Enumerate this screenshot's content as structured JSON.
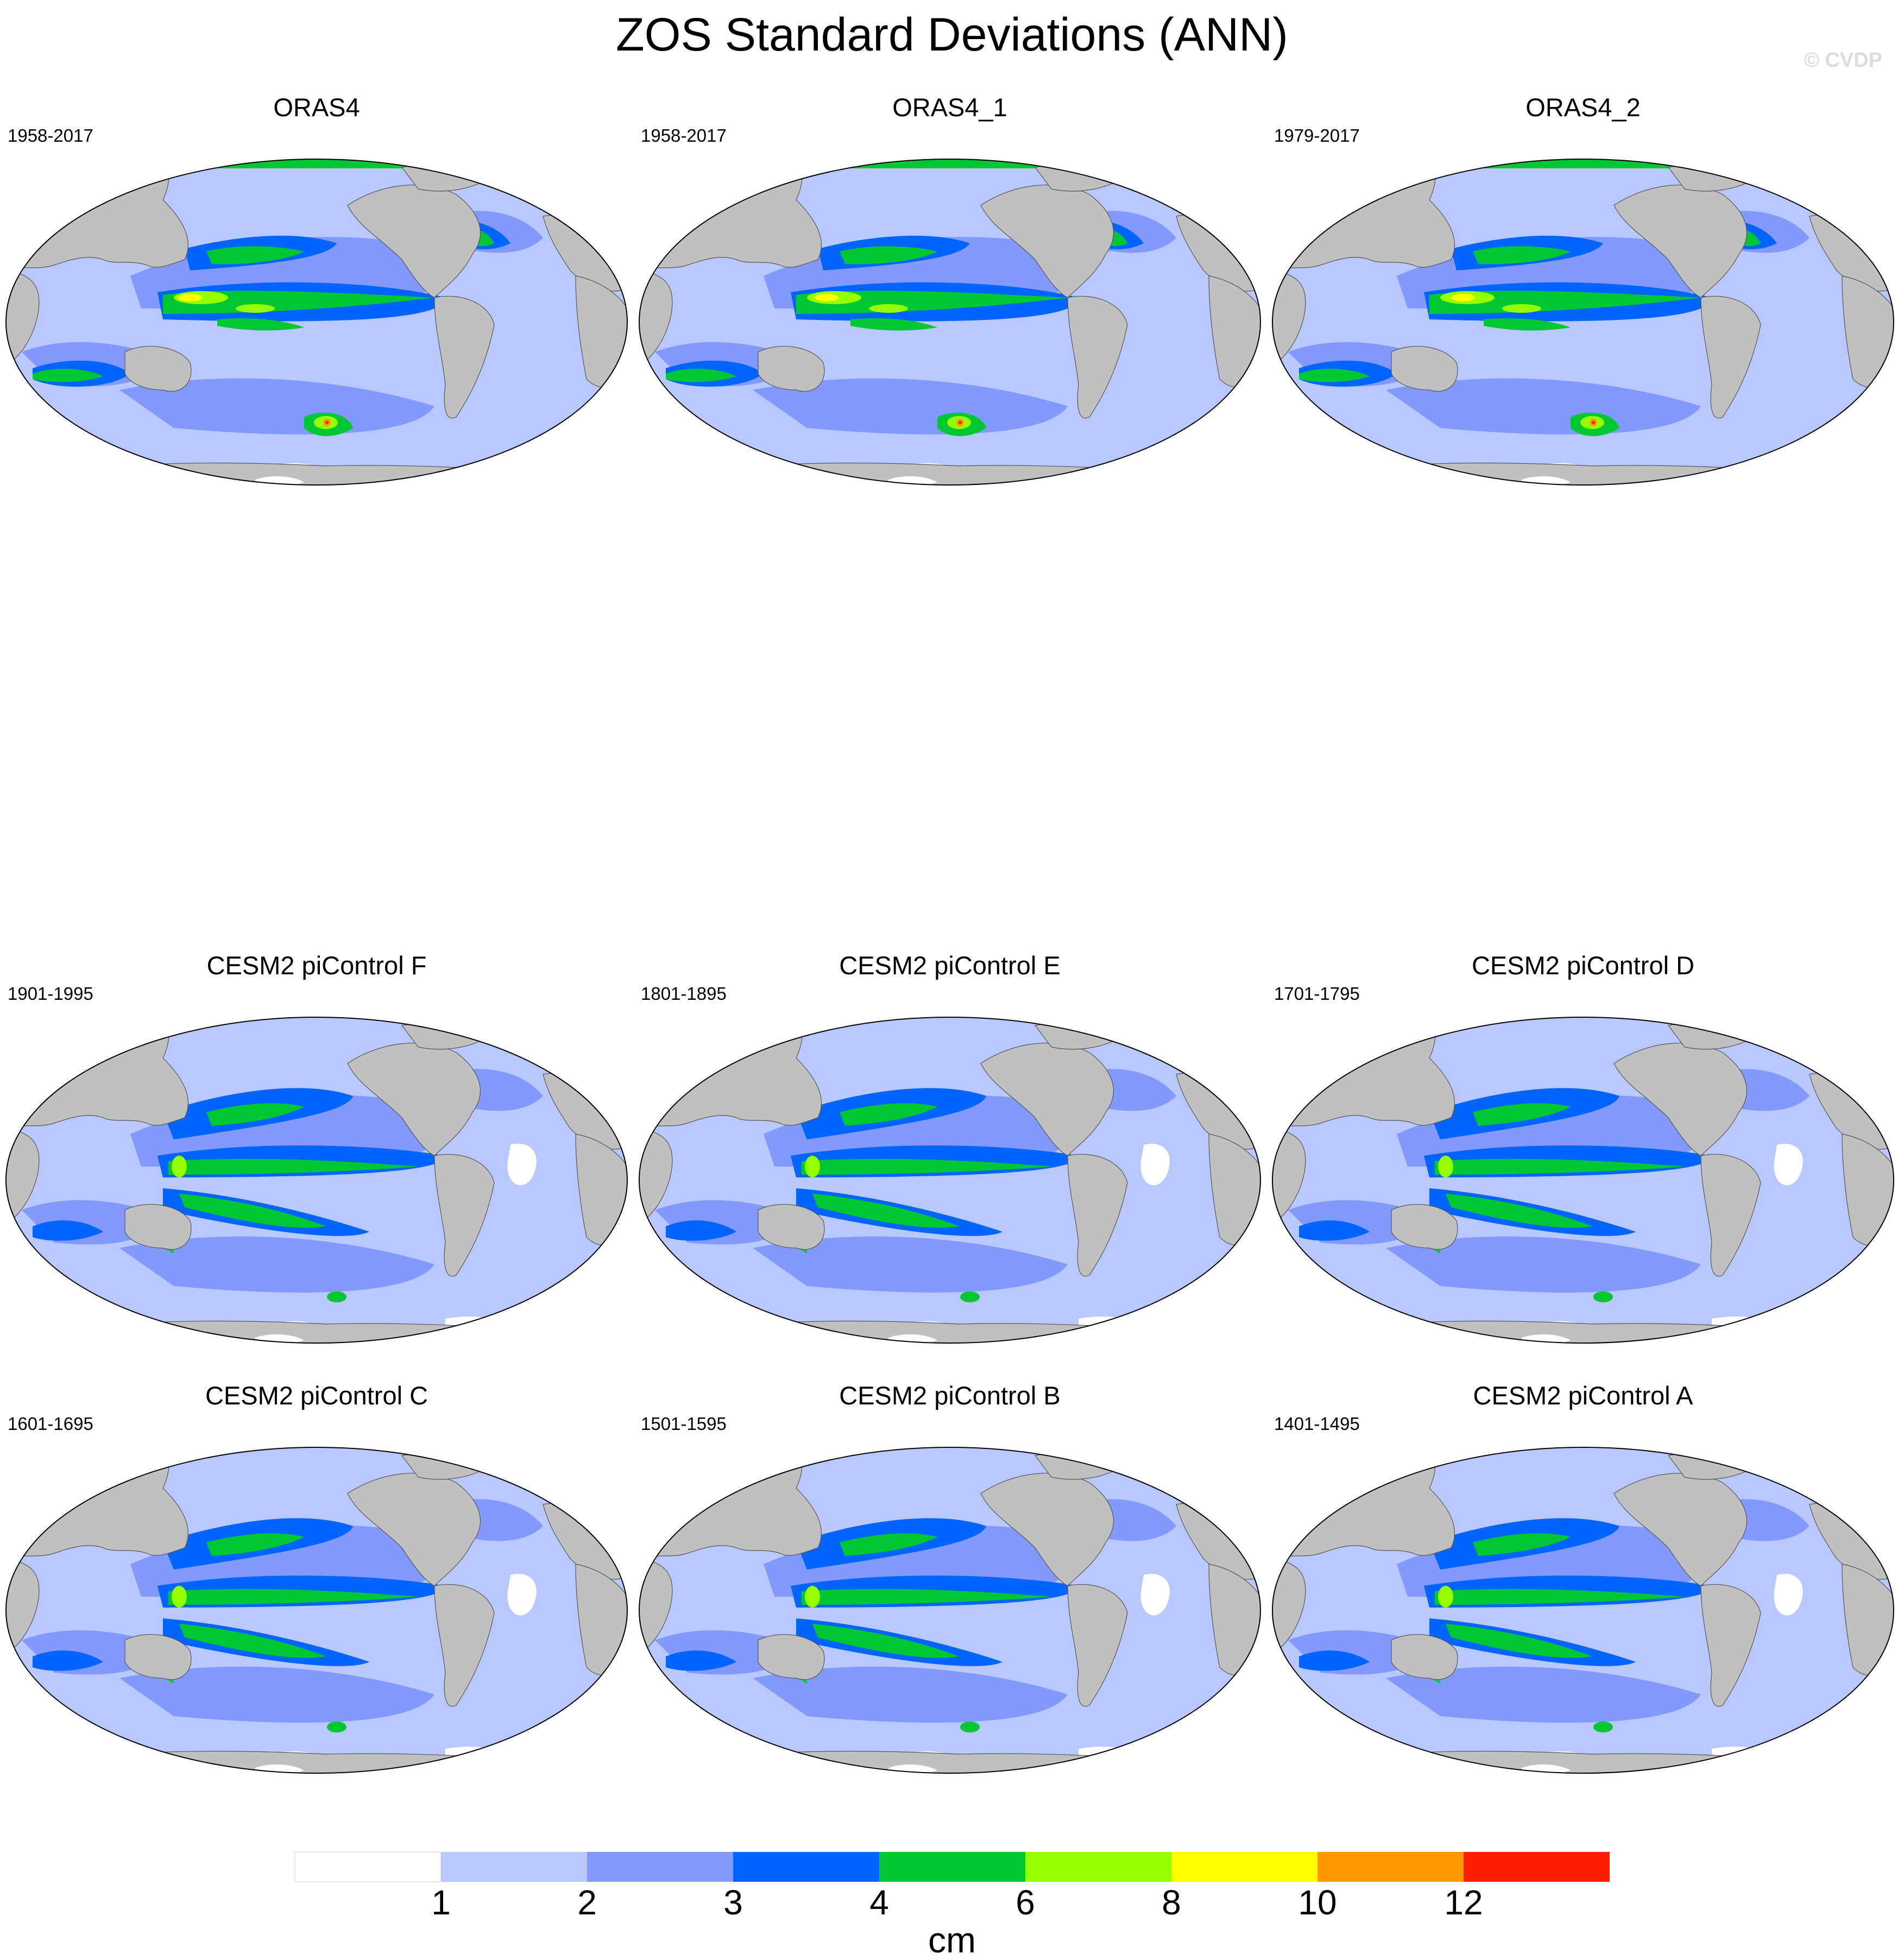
{
  "title": "ZOS Standard Deviations (ANN)",
  "watermark": "© CVDP",
  "colors": {
    "land": "#c0c0c0",
    "ocean_bins": [
      "#ffffff",
      "#b9c9ff",
      "#8299ff",
      "#0064ff",
      "#00c832",
      "#96ff00",
      "#ffff00",
      "#ff9900",
      "#ff1e00"
    ],
    "map_outline": "#000000"
  },
  "panels": [
    {
      "title": "ORAS4",
      "period": "1958-2017",
      "type": "reanalysis"
    },
    {
      "title": "ORAS4_1",
      "period": "1958-2017",
      "type": "reanalysis"
    },
    {
      "title": "ORAS4_2",
      "period": "1979-2017",
      "type": "reanalysis"
    },
    {
      "title": "CESM2 piControl F",
      "period": "1901-1995",
      "type": "model"
    },
    {
      "title": "CESM2 piControl E",
      "period": "1801-1895",
      "type": "model"
    },
    {
      "title": "CESM2 piControl D",
      "period": "1701-1795",
      "type": "model"
    },
    {
      "title": "CESM2 piControl C",
      "period": "1601-1695",
      "type": "model"
    },
    {
      "title": "CESM2 piControl B",
      "period": "1501-1595",
      "type": "model"
    },
    {
      "title": "CESM2 piControl A",
      "period": "1401-1495",
      "type": "model"
    }
  ],
  "colorbar": {
    "levels": [
      "1",
      "2",
      "3",
      "4",
      "6",
      "8",
      "10",
      "12"
    ],
    "unit": "cm"
  }
}
